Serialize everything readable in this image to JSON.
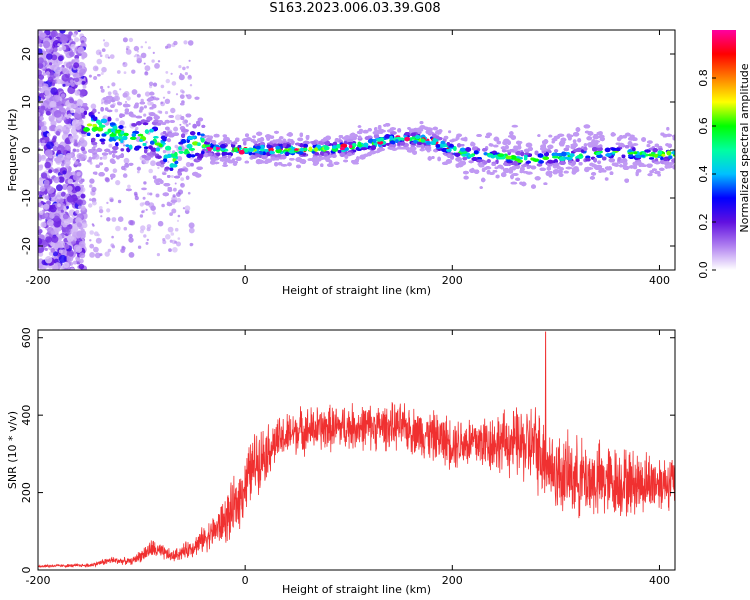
{
  "title": "S163.2023.006.03.39.G08",
  "chart_data": [
    {
      "type": "heatmap",
      "title": "",
      "xlabel": "Height of straight line (km)",
      "ylabel": "Frequency (Hz)",
      "xlim": [
        -200,
        415
      ],
      "ylim": [
        -25,
        25
      ],
      "x_ticks": [
        -200,
        0,
        200,
        400
      ],
      "y_ticks": [
        20,
        10,
        0,
        -10,
        -20
      ],
      "colorbar": {
        "label": "Normalized spectral amplitude",
        "range": [
          0,
          1
        ],
        "ticks": [
          0.0,
          0.2,
          0.4,
          0.6,
          0.8
        ],
        "colors": [
          "#ffffff",
          "#b080f0",
          "#6010e0",
          "#0000ff",
          "#00c0ff",
          "#00ffa0",
          "#00ff00",
          "#ffff00",
          "#ff8000",
          "#ff0000",
          "#ff00a0"
        ]
      },
      "ridge": {
        "x": [
          -150,
          -130,
          -110,
          -90,
          -70,
          -55,
          -45,
          -30,
          0,
          50,
          100,
          150,
          180,
          200,
          220,
          250,
          280,
          300,
          330,
          360,
          390,
          415
        ],
        "frequency": [
          5,
          4,
          2,
          3,
          -2,
          0.5,
          1.5,
          0,
          0,
          0,
          0.5,
          2.5,
          2,
          0,
          -1,
          -1.5,
          -2,
          -1.5,
          -1,
          -0.5,
          -1,
          -1
        ]
      },
      "grid": false
    },
    {
      "type": "line",
      "title": "",
      "xlabel": "Height of straight line (km)",
      "ylabel": "SNR (10 * v/v)",
      "xlim": [
        -200,
        415
      ],
      "ylim": [
        0,
        620
      ],
      "x_ticks": [
        -200,
        0,
        200,
        400
      ],
      "y_ticks": [
        0,
        200,
        400,
        600
      ],
      "line_color": "#f03030",
      "envelope": {
        "x": [
          -200,
          -150,
          -130,
          -110,
          -90,
          -70,
          -50,
          -30,
          -12,
          10,
          30,
          50,
          100,
          150,
          200,
          250,
          280,
          300,
          340,
          380,
          415
        ],
        "mean": [
          10,
          12,
          25,
          22,
          55,
          35,
          60,
          100,
          150,
          280,
          330,
          360,
          370,
          370,
          330,
          330,
          320,
          250,
          230,
          225,
          230
        ],
        "spread": [
          4,
          5,
          12,
          10,
          30,
          18,
          30,
          50,
          90,
          100,
          70,
          70,
          70,
          70,
          80,
          95,
          130,
          120,
          120,
          100,
          80
        ]
      },
      "peak": {
        "x": 290,
        "snr": 615
      },
      "grid": false
    }
  ]
}
